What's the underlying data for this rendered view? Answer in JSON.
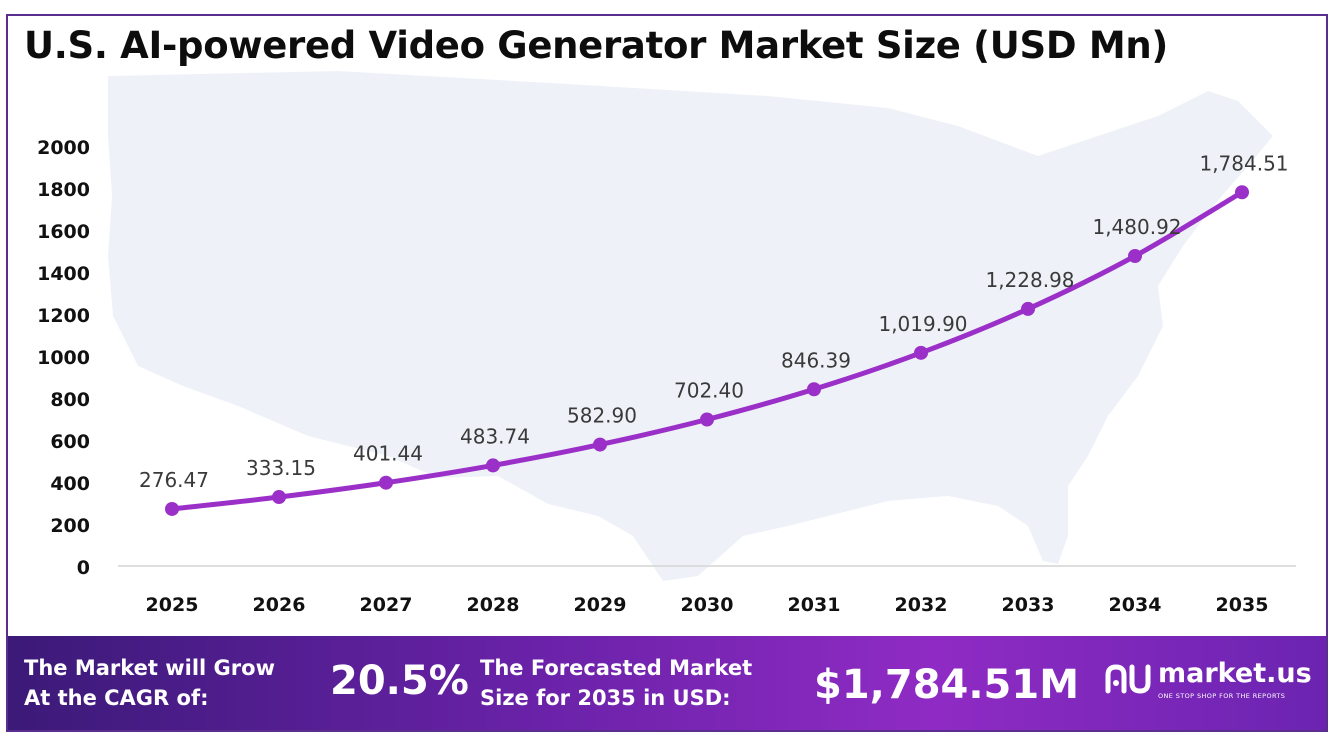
{
  "title": "U.S. AI-powered Video Generator Market Size (USD Mn)",
  "chart_data": {
    "type": "line",
    "title": "U.S. AI-powered Video Generator Market Size (USD Mn)",
    "xlabel": "",
    "ylabel": "",
    "categories": [
      "2025",
      "2026",
      "2027",
      "2028",
      "2029",
      "2030",
      "2031",
      "2032",
      "2033",
      "2034",
      "2035"
    ],
    "values": [
      276.47,
      333.15,
      401.44,
      483.74,
      582.9,
      702.4,
      846.39,
      1019.9,
      1228.98,
      1480.92,
      1784.51
    ],
    "value_labels": [
      "276.47",
      "333.15",
      "401.44",
      "483.74",
      "582.90",
      "702.40",
      "846.39",
      "1,019.90",
      "1,228.98",
      "1,480.92",
      "1,784.51"
    ],
    "y_ticks": [
      "0",
      "200",
      "400",
      "600",
      "800",
      "1000",
      "1200",
      "1400",
      "1600",
      "1800",
      "2000"
    ],
    "ylim": [
      0,
      2000
    ],
    "grid": false,
    "legend": "none",
    "line_color": "#9b30c8",
    "background": "us-map"
  },
  "banner": {
    "cagr_label_line1": "The Market will Grow",
    "cagr_label_line2": "At the CAGR of:",
    "cagr_value": "20.5%",
    "forecast_label_line1": "The Forecasted Market",
    "forecast_label_line2": "Size for 2035 in USD:",
    "forecast_value": "$1,784.51M",
    "brand_name": "market.us",
    "brand_tagline": "ONE STOP SHOP FOR THE REPORTS",
    "brand_icon": "market-us-logo-icon"
  },
  "colors": {
    "banner_start": "#3b1a78",
    "banner_end": "#8f2bc4",
    "line": "#9b30c8",
    "map": "#eef2f8"
  }
}
